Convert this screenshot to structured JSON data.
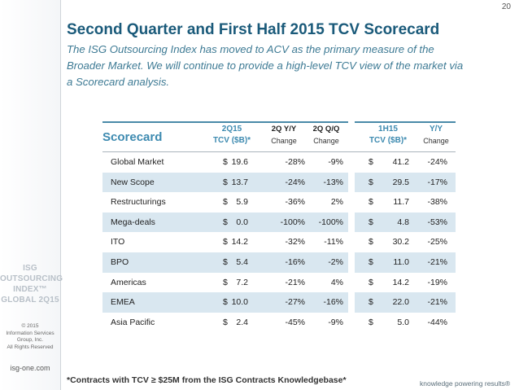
{
  "page_number": "20",
  "title": "Second Quarter and First Half 2015 TCV Scorecard",
  "subtitle_lines": [
    "The ISG Outsourcing Index has moved to ACV as the primary measure of the",
    "Broader Market. We will continue to provide a high-level TCV view of the market via",
    "a Scorecard analysis."
  ],
  "sidebar": {
    "logo_lines": [
      "ISG",
      "OUTSOURCING",
      "INDEX™",
      "GLOBAL 2Q15"
    ],
    "copyright_lines": [
      "© 2015",
      "Information Services",
      "Group, Inc.",
      "All Rights Reserved"
    ],
    "url": "isg-one.com"
  },
  "table": {
    "header": {
      "label": "Scorecard",
      "q_tcv_line1": "2Q15",
      "q_tcv_line2": "TCV ($B)*",
      "q_yy_line1": "2Q Y/Y",
      "q_yy_line2": "Change",
      "q_qq_line1": "2Q Q/Q",
      "q_qq_line2": "Change",
      "h_tcv_line1": "1H15",
      "h_tcv_line2": "TCV ($B)*",
      "h_yy_line1": "Y/Y",
      "h_yy_line2": "Change"
    },
    "rows": [
      {
        "name": "Global Market",
        "cur1": "$",
        "q_tcv": "19.6",
        "q_yy": "-28%",
        "q_qq": "-9%",
        "cur2": "$",
        "h_tcv": "41.2",
        "h_yy": "-24%"
      },
      {
        "name": "New Scope",
        "cur1": "$",
        "q_tcv": "13.7",
        "q_yy": "-24%",
        "q_qq": "-13%",
        "cur2": "$",
        "h_tcv": "29.5",
        "h_yy": "-17%"
      },
      {
        "name": "Restructurings",
        "cur1": "$",
        "q_tcv": "5.9",
        "q_yy": "-36%",
        "q_qq": "2%",
        "cur2": "$",
        "h_tcv": "11.7",
        "h_yy": "-38%"
      },
      {
        "name": "Mega-deals",
        "cur1": "$",
        "q_tcv": "0.0",
        "q_yy": "-100%",
        "q_qq": "-100%",
        "cur2": "$",
        "h_tcv": "4.8",
        "h_yy": "-53%"
      },
      {
        "name": "ITO",
        "cur1": "$",
        "q_tcv": "14.2",
        "q_yy": "-32%",
        "q_qq": "-11%",
        "cur2": "$",
        "h_tcv": "30.2",
        "h_yy": "-25%"
      },
      {
        "name": "BPO",
        "cur1": "$",
        "q_tcv": "5.4",
        "q_yy": "-16%",
        "q_qq": "-2%",
        "cur2": "$",
        "h_tcv": "11.0",
        "h_yy": "-21%"
      },
      {
        "name": "Americas",
        "cur1": "$",
        "q_tcv": "7.2",
        "q_yy": "-21%",
        "q_qq": "4%",
        "cur2": "$",
        "h_tcv": "14.2",
        "h_yy": "-19%"
      },
      {
        "name": "EMEA",
        "cur1": "$",
        "q_tcv": "10.0",
        "q_yy": "-27%",
        "q_qq": "-16%",
        "cur2": "$",
        "h_tcv": "22.0",
        "h_yy": "-21%"
      },
      {
        "name": "Asia Pacific",
        "cur1": "$",
        "q_tcv": "2.4",
        "q_yy": "-45%",
        "q_qq": "-9%",
        "cur2": "$",
        "h_tcv": "5.0",
        "h_yy": "-44%"
      }
    ]
  },
  "footnote": "*Contracts with TCV ≥ $25M from the ISG Contracts Knowledgebase*",
  "tagline": "knowledge powering results®"
}
